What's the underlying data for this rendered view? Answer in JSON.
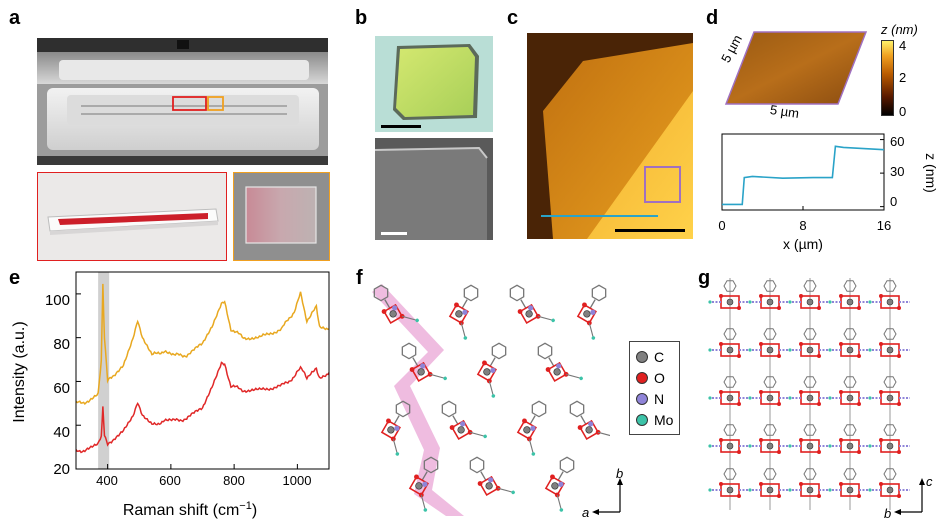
{
  "panel_labels": {
    "a": "a",
    "b": "b",
    "c": "c",
    "d": "d",
    "e": "e",
    "f": "f",
    "g": "g"
  },
  "colors": {
    "furnace_box_red": "#e02020",
    "furnace_box_orange": "#f0a020",
    "afm_square": "#a070c0",
    "afm_line": "#2aa3c8",
    "trace_orange": "#e8a820",
    "trace_red": "#e02828",
    "highlight_band": "#c8c8c8",
    "structure_highlight": "#e9a6d6",
    "atom_C": "#808080",
    "atom_O": "#e02020",
    "atom_N": "#8f84d8",
    "atom_Mo": "#3cc3a8"
  },
  "panel_d": {
    "colorbar_title": "z (nm)",
    "colorbar_ticks": [
      "4",
      "2",
      "0"
    ],
    "afm_size_left": "5 µm",
    "afm_size_bottom": "5 µm",
    "profile_xlabel": "x (µm)",
    "profile_ylabel": "z (nm)",
    "profile_xticks": [
      "0",
      "8",
      "16"
    ],
    "profile_yticks": [
      "60",
      "30",
      "0"
    ]
  },
  "panel_f": {
    "legend": [
      {
        "label": "C",
        "color": "#808080"
      },
      {
        "label": "O",
        "color": "#e02020"
      },
      {
        "label": "N",
        "color": "#8f84d8"
      },
      {
        "label": "Mo",
        "color": "#3cc3a8"
      }
    ],
    "axis_a": "a",
    "axis_b": "b"
  },
  "panel_g": {
    "axis_b": "b",
    "axis_c": "c"
  },
  "chart_data": [
    {
      "type": "line",
      "panel": "d",
      "xlabel": "x (µm)",
      "ylabel": "z (nm)",
      "xlim": [
        0,
        16
      ],
      "ylim": [
        -3,
        65
      ],
      "xticks": [
        0,
        8,
        16
      ],
      "yticks": [
        0,
        30,
        60
      ],
      "series": [
        {
          "x": [
            0,
            2.0,
            2.2,
            3,
            6,
            9,
            10.9,
            11.2,
            12,
            14,
            16
          ],
          "y": [
            2,
            2,
            26,
            27,
            25.5,
            26,
            26,
            54,
            53,
            52,
            51
          ]
        }
      ]
    },
    {
      "type": "line",
      "panel": "e",
      "xlabel": "Raman shift (cm−1)",
      "ylabel": "Intensity (a.u.)",
      "xlim": [
        300,
        1100
      ],
      "ylim": [
        20,
        110
      ],
      "xticks": [
        400,
        600,
        800,
        1000
      ],
      "yticks": [
        20,
        40,
        60,
        80,
        100
      ],
      "highlight_band": [
        370,
        405
      ],
      "series": [
        {
          "color": "#e8a820",
          "x": [
            300,
            340,
            370,
            380,
            385,
            390,
            400,
            420,
            450,
            480,
            495,
            510,
            540,
            580,
            610,
            650,
            700,
            730,
            760,
            770,
            790,
            830,
            880,
            950,
            990,
            1010,
            1020,
            1030,
            1050,
            1060,
            1070,
            1100
          ],
          "y": [
            50,
            51,
            54,
            70,
            104,
            80,
            60,
            63,
            68,
            80,
            88,
            80,
            72,
            74,
            72,
            72,
            77,
            85,
            96,
            96,
            84,
            80,
            80,
            84,
            92,
            100,
            94,
            88,
            92,
            95,
            85,
            84
          ]
        },
        {
          "color": "#e02828",
          "x": [
            300,
            340,
            370,
            380,
            385,
            390,
            400,
            420,
            450,
            480,
            495,
            510,
            540,
            580,
            610,
            650,
            700,
            730,
            760,
            770,
            790,
            830,
            880,
            950,
            990,
            1010,
            1020,
            1030,
            1050,
            1060,
            1070,
            1100
          ],
          "y": [
            28,
            29,
            31,
            35,
            48,
            36,
            31,
            34,
            38,
            44,
            50,
            44,
            40,
            42,
            42,
            43,
            48,
            58,
            69,
            68,
            58,
            56,
            56,
            58,
            62,
            66,
            64,
            62,
            64,
            66,
            62,
            64
          ]
        }
      ]
    }
  ],
  "panel_e_text": {
    "xlabel_main": "Raman shift (cm",
    "xlabel_sup": "−1",
    "xlabel_close": ")",
    "ylabel": "Intensity (a.u.)",
    "xticks": [
      "400",
      "600",
      "800",
      "1000"
    ],
    "yticks": [
      "100",
      "80",
      "60",
      "40",
      "20"
    ]
  }
}
